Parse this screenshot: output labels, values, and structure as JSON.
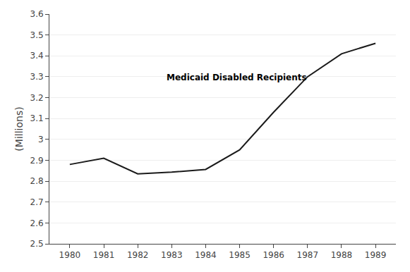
{
  "chart_data": {
    "type": "line",
    "x": [
      1980,
      1981,
      1982,
      1983,
      1984,
      1985,
      1986,
      1987,
      1988,
      1989
    ],
    "values": [
      2.88,
      2.91,
      2.835,
      2.843,
      2.856,
      2.95,
      3.13,
      3.3,
      3.41,
      3.46
    ],
    "color": "#1a1a1a",
    "xlim": [
      1979.4,
      1989.6
    ],
    "xticks": [
      1980,
      1981,
      1982,
      1983,
      1984,
      1985,
      1986,
      1987,
      1988,
      1989
    ],
    "ylim": [
      2.5,
      3.6
    ],
    "yticks": [
      2.5,
      2.6,
      2.7,
      2.8,
      2.9,
      3,
      3.1,
      3.2,
      3.3,
      3.4,
      3.5,
      3.6
    ],
    "ylabel": "(Millions)",
    "annotation": {
      "text": "Medicaid Disabled Recipients",
      "x": 1982.8,
      "y": 3.295
    },
    "grid": true
  }
}
